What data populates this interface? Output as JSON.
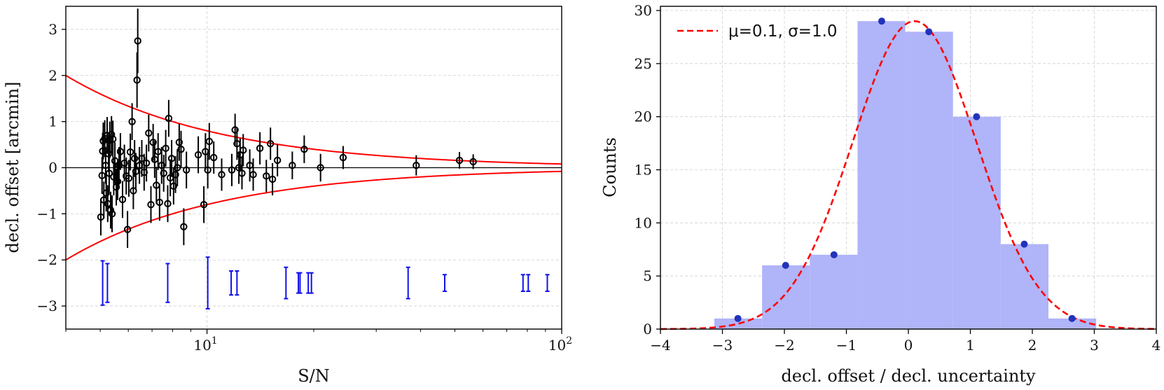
{
  "chart_data": [
    {
      "type": "scatter",
      "panel": "left",
      "xscale": "log",
      "xlim": [
        4,
        100
      ],
      "ylim": [
        -3.5,
        3.5
      ],
      "xlabel": "S/N",
      "ylabel": "decl. offset [arcmin]",
      "xticks": [
        {
          "value": 10,
          "base": "10",
          "exp": "1"
        },
        {
          "value": 100,
          "base": "10",
          "exp": "2"
        }
      ],
      "yticks": [
        -3,
        -2,
        -1,
        0,
        1,
        2,
        3
      ],
      "yticklabels": [
        "−3",
        "−2",
        "−1",
        "0",
        "1",
        "2",
        "3"
      ],
      "grid": true,
      "zero_line": true,
      "envelope": {
        "color": "#ff0000",
        "formula": "y = ± 8 / (S/N)"
      },
      "points": [
        {
          "x": 5.02,
          "y": -1.07,
          "err": 0.4
        },
        {
          "x": 5.06,
          "y": -0.17,
          "err": 0.4
        },
        {
          "x": 5.08,
          "y": 0.36,
          "err": 0.4
        },
        {
          "x": 5.1,
          "y": 0.58,
          "err": 0.4
        },
        {
          "x": 5.12,
          "y": -0.7,
          "err": 0.4
        },
        {
          "x": 5.15,
          "y": 0.63,
          "err": 0.4
        },
        {
          "x": 5.18,
          "y": 0.05,
          "err": 0.4
        },
        {
          "x": 5.2,
          "y": -0.55,
          "err": 0.4
        },
        {
          "x": 5.23,
          "y": 0.7,
          "err": 0.4
        },
        {
          "x": 5.25,
          "y": -0.78,
          "err": 0.4
        },
        {
          "x": 5.28,
          "y": 0.3,
          "err": 0.4
        },
        {
          "x": 5.3,
          "y": -0.12,
          "err": 0.4
        },
        {
          "x": 5.32,
          "y": 0.6,
          "err": 0.4
        },
        {
          "x": 5.35,
          "y": -0.92,
          "err": 0.4
        },
        {
          "x": 5.38,
          "y": 0.72,
          "err": 0.4
        },
        {
          "x": 5.4,
          "y": -1.0,
          "err": 0.4
        },
        {
          "x": 5.43,
          "y": 0.62,
          "err": 0.4
        },
        {
          "x": 5.46,
          "y": -0.2,
          "err": 0.4
        },
        {
          "x": 5.5,
          "y": 0.15,
          "err": 0.4
        },
        {
          "x": 5.55,
          "y": -0.42,
          "err": 0.4
        },
        {
          "x": 5.6,
          "y": -0.3,
          "err": 0.4
        },
        {
          "x": 5.65,
          "y": 0.05,
          "err": 0.4
        },
        {
          "x": 5.7,
          "y": 0.35,
          "err": 0.4
        },
        {
          "x": 5.78,
          "y": -0.69,
          "err": 0.4
        },
        {
          "x": 5.85,
          "y": 0.1,
          "err": 0.4
        },
        {
          "x": 5.92,
          "y": -0.18,
          "err": 0.4
        },
        {
          "x": 5.97,
          "y": -1.34,
          "err": 0.4
        },
        {
          "x": 6.02,
          "y": -0.23,
          "err": 0.4
        },
        {
          "x": 6.08,
          "y": 0.34,
          "err": 0.4
        },
        {
          "x": 6.15,
          "y": 1.0,
          "err": 0.4
        },
        {
          "x": 6.2,
          "y": -0.5,
          "err": 0.4
        },
        {
          "x": 6.25,
          "y": 0.2,
          "err": 0.4
        },
        {
          "x": 6.3,
          "y": -0.08,
          "err": 0.4
        },
        {
          "x": 6.35,
          "y": 1.9,
          "err": 0.6
        },
        {
          "x": 6.38,
          "y": 2.75,
          "err": 0.7
        },
        {
          "x": 6.45,
          "y": 0.05,
          "err": 0.4
        },
        {
          "x": 6.55,
          "y": 0.2,
          "err": 0.4
        },
        {
          "x": 6.65,
          "y": -0.1,
          "err": 0.4
        },
        {
          "x": 6.75,
          "y": 0.1,
          "err": 0.4
        },
        {
          "x": 6.85,
          "y": 0.75,
          "err": 0.4
        },
        {
          "x": 6.95,
          "y": -0.8,
          "err": 0.4
        },
        {
          "x": 7.05,
          "y": 0.55,
          "err": 0.4
        },
        {
          "x": 7.12,
          "y": 0.18,
          "err": 0.4
        },
        {
          "x": 7.2,
          "y": -0.38,
          "err": 0.4
        },
        {
          "x": 7.28,
          "y": 0.35,
          "err": 0.4
        },
        {
          "x": 7.35,
          "y": -0.75,
          "err": 0.4
        },
        {
          "x": 7.45,
          "y": 0.05,
          "err": 0.4
        },
        {
          "x": 7.55,
          "y": -0.12,
          "err": 0.4
        },
        {
          "x": 7.65,
          "y": 0.42,
          "err": 0.4
        },
        {
          "x": 7.75,
          "y": -0.78,
          "err": 0.4
        },
        {
          "x": 7.8,
          "y": 1.07,
          "err": 0.4
        },
        {
          "x": 7.88,
          "y": -0.22,
          "err": 0.4
        },
        {
          "x": 7.95,
          "y": 0.2,
          "err": 0.4
        },
        {
          "x": 8.05,
          "y": -0.4,
          "err": 0.4
        },
        {
          "x": 8.15,
          "y": -0.15,
          "err": 0.4
        },
        {
          "x": 8.25,
          "y": 0.0,
          "err": 0.4
        },
        {
          "x": 8.35,
          "y": 0.55,
          "err": 0.4
        },
        {
          "x": 8.45,
          "y": 0.4,
          "err": 0.4
        },
        {
          "x": 8.6,
          "y": -1.28,
          "err": 0.4
        },
        {
          "x": 8.75,
          "y": -0.05,
          "err": 0.4
        },
        {
          "x": 9.45,
          "y": 0.28,
          "err": 0.4
        },
        {
          "x": 9.8,
          "y": -0.8,
          "err": 0.4
        },
        {
          "x": 9.9,
          "y": 0.35,
          "err": 0.4
        },
        {
          "x": 10.05,
          "y": -0.05,
          "err": 0.4
        },
        {
          "x": 10.15,
          "y": 0.57,
          "err": 0.4
        },
        {
          "x": 10.45,
          "y": 0.22,
          "err": 0.35
        },
        {
          "x": 11.0,
          "y": -0.15,
          "err": 0.35
        },
        {
          "x": 11.75,
          "y": -0.05,
          "err": 0.35
        },
        {
          "x": 12.0,
          "y": 0.82,
          "err": 0.35
        },
        {
          "x": 12.15,
          "y": 0.52,
          "err": 0.35
        },
        {
          "x": 12.3,
          "y": 0.0,
          "err": 0.35
        },
        {
          "x": 12.4,
          "y": 0.28,
          "err": 0.35
        },
        {
          "x": 12.55,
          "y": -0.12,
          "err": 0.35
        },
        {
          "x": 12.65,
          "y": 0.38,
          "err": 0.35
        },
        {
          "x": 13.2,
          "y": 0.05,
          "err": 0.35
        },
        {
          "x": 13.5,
          "y": -0.15,
          "err": 0.35
        },
        {
          "x": 14.1,
          "y": 0.42,
          "err": 0.35
        },
        {
          "x": 14.7,
          "y": -0.18,
          "err": 0.35
        },
        {
          "x": 15.1,
          "y": 0.52,
          "err": 0.35
        },
        {
          "x": 15.3,
          "y": -0.25,
          "err": 0.35
        },
        {
          "x": 15.8,
          "y": 0.16,
          "err": 0.35
        },
        {
          "x": 17.4,
          "y": 0.05,
          "err": 0.3
        },
        {
          "x": 18.8,
          "y": 0.4,
          "err": 0.3
        },
        {
          "x": 20.9,
          "y": 0.0,
          "err": 0.3
        },
        {
          "x": 24.2,
          "y": 0.22,
          "err": 0.25
        },
        {
          "x": 38.9,
          "y": 0.05,
          "err": 0.22
        },
        {
          "x": 51.5,
          "y": 0.16,
          "err": 0.18
        },
        {
          "x": 56.3,
          "y": 0.13,
          "err": 0.16
        }
      ],
      "error_scale": [
        {
          "x": 5.08,
          "y": -2.5,
          "err": 0.48
        },
        {
          "x": 5.24,
          "y": -2.5,
          "err": 0.42
        },
        {
          "x": 7.75,
          "y": -2.5,
          "err": 0.42
        },
        {
          "x": 10.05,
          "y": -2.5,
          "err": 0.56
        },
        {
          "x": 11.7,
          "y": -2.5,
          "err": 0.26
        },
        {
          "x": 12.15,
          "y": -2.5,
          "err": 0.26
        },
        {
          "x": 16.7,
          "y": -2.5,
          "err": 0.34
        },
        {
          "x": 18.1,
          "y": -2.5,
          "err": 0.22
        },
        {
          "x": 18.3,
          "y": -2.5,
          "err": 0.22
        },
        {
          "x": 19.3,
          "y": -2.5,
          "err": 0.22
        },
        {
          "x": 19.7,
          "y": -2.5,
          "err": 0.22
        },
        {
          "x": 36.9,
          "y": -2.5,
          "err": 0.34
        },
        {
          "x": 46.8,
          "y": -2.5,
          "err": 0.18
        },
        {
          "x": 77.8,
          "y": -2.5,
          "err": 0.18
        },
        {
          "x": 80.5,
          "y": -2.5,
          "err": 0.18
        },
        {
          "x": 91.1,
          "y": -2.5,
          "err": 0.18
        }
      ],
      "error_scale_color": "#1010ee",
      "point_color": "#000000"
    },
    {
      "type": "bar",
      "panel": "right",
      "xlim": [
        -4,
        4
      ],
      "ylim": [
        0,
        30
      ],
      "xlabel": "decl. offset / decl. uncertainty",
      "ylabel": "Counts",
      "xticks": [
        -4,
        -3,
        -2,
        -1,
        0,
        1,
        2,
        3,
        4
      ],
      "xticklabels": [
        "−4",
        "−3",
        "−2",
        "−1",
        "0",
        "1",
        "2",
        "3",
        "4"
      ],
      "yticks": [
        0,
        5,
        10,
        15,
        20,
        25,
        30
      ],
      "yticklabels": [
        "0",
        "5",
        "10",
        "15",
        "20",
        "25",
        "30"
      ],
      "grid": true,
      "bin_edges": [
        -3.13,
        -2.36,
        -1.59,
        -0.82,
        -0.05,
        0.72,
        1.49,
        2.26,
        3.03
      ],
      "counts": [
        1,
        6,
        7,
        29,
        28,
        20,
        8,
        1
      ],
      "bar_color": "#b0b4f8",
      "centers": [
        -2.75,
        -1.98,
        -1.2,
        -0.43,
        0.33,
        1.1,
        1.87,
        2.64
      ],
      "center_color": "#2233bb",
      "gaussian": {
        "mu": 0.1,
        "sigma": 1.0,
        "peak": 29,
        "color": "#ff0000",
        "style": "dashed"
      },
      "legend": {
        "label": "μ=0.1, σ=1.0",
        "location": "top-left"
      }
    }
  ]
}
